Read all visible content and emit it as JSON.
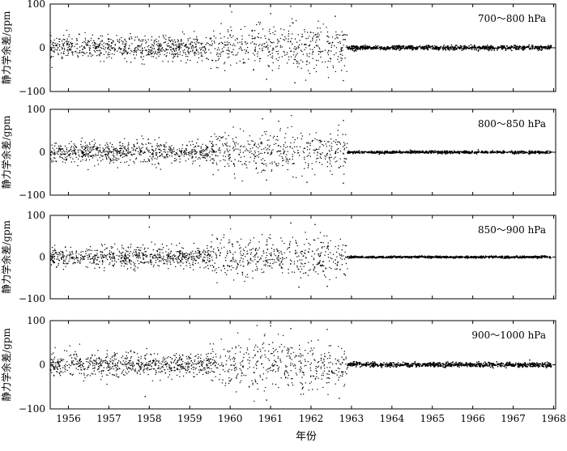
{
  "chart_data": {
    "type": "scatter",
    "xlabel": "年份",
    "ylabel": "静力学余差/gpm",
    "xlim": [
      1955.55,
      1968.05
    ],
    "ylim": [
      -100,
      100
    ],
    "x_ticks": [
      1956,
      1957,
      1958,
      1959,
      1960,
      1961,
      1962,
      1963,
      1964,
      1965,
      1966,
      1967,
      1968
    ],
    "y_ticks": [
      -100,
      0,
      100
    ],
    "grid": false,
    "legend": "none",
    "colors": {
      "marker": "#000000",
      "axes": "#000000",
      "background": "#ffffff"
    },
    "panels": [
      {
        "label": "700～800 hPa",
        "series": [
          {
            "segments": [
              {
                "x_range": [
                  1955.55,
                  1959.4
                ],
                "center": 0,
                "spread": 13,
                "density": 1.0
              },
              {
                "x_range": [
                  1959.4,
                  1962.9
                ],
                "center": 0,
                "spread": 26,
                "density": 0.75
              },
              {
                "x_range": [
                  1962.9,
                  1967.95
                ],
                "center": 0,
                "spread": 2.5,
                "density": 1.0
              }
            ],
            "outliers": [
              {
                "x": 1961.0,
                "y": 78
              },
              {
                "x": 1961.5,
                "y": 95
              },
              {
                "x": 1962.6,
                "y": 72
              },
              {
                "x": 1960.9,
                "y": -72
              },
              {
                "x": 1961.6,
                "y": -80
              },
              {
                "x": 1962.8,
                "y": -75
              }
            ]
          }
        ]
      },
      {
        "label": "800～850 hPa",
        "series": [
          {
            "segments": [
              {
                "x_range": [
                  1955.55,
                  1959.5
                ],
                "center": 0,
                "spread": 12,
                "density": 1.0
              },
              {
                "x_range": [
                  1959.5,
                  1962.9
                ],
                "center": 0,
                "spread": 24,
                "density": 0.75
              },
              {
                "x_range": [
                  1962.9,
                  1967.95
                ],
                "center": 0,
                "spread": 1.5,
                "density": 1.0
              }
            ],
            "outliers": [
              {
                "x": 1960.8,
                "y": 78
              },
              {
                "x": 1961.2,
                "y": 72
              },
              {
                "x": 1962.8,
                "y": 74
              },
              {
                "x": 1960.9,
                "y": -65
              },
              {
                "x": 1961.9,
                "y": -70
              },
              {
                "x": 1962.8,
                "y": -72
              }
            ]
          }
        ]
      },
      {
        "label": "850～900 hPa",
        "series": [
          {
            "segments": [
              {
                "x_range": [
                  1955.55,
                  1959.5
                ],
                "center": 0,
                "spread": 12,
                "density": 1.0
              },
              {
                "x_range": [
                  1959.5,
                  1962.9
                ],
                "center": 0,
                "spread": 24,
                "density": 0.75
              },
              {
                "x_range": [
                  1962.9,
                  1967.95
                ],
                "center": 0,
                "spread": 1.2,
                "density": 1.0
              }
            ],
            "outliers": [
              {
                "x": 1958.0,
                "y": 72
              },
              {
                "x": 1961.5,
                "y": 82
              },
              {
                "x": 1962.1,
                "y": 78
              },
              {
                "x": 1960.9,
                "y": -96
              },
              {
                "x": 1961.7,
                "y": -72
              },
              {
                "x": 1962.4,
                "y": -70
              }
            ]
          }
        ]
      },
      {
        "label": "900～1000 hPa",
        "series": [
          {
            "segments": [
              {
                "x_range": [
                  1955.55,
                  1959.5
                ],
                "center": 0,
                "spread": 13,
                "density": 1.0
              },
              {
                "x_range": [
                  1959.5,
                  1962.9
                ],
                "center": 0,
                "spread": 28,
                "density": 0.75
              },
              {
                "x_range": [
                  1962.9,
                  1967.95
                ],
                "center": 0,
                "spread": 2.5,
                "density": 1.0
              }
            ],
            "outliers": [
              {
                "x": 1961.0,
                "y": 88
              },
              {
                "x": 1961.5,
                "y": 82
              },
              {
                "x": 1962.4,
                "y": 80
              },
              {
                "x": 1957.9,
                "y": -72
              },
              {
                "x": 1960.9,
                "y": -80
              },
              {
                "x": 1962.7,
                "y": -76
              }
            ]
          }
        ]
      }
    ]
  }
}
